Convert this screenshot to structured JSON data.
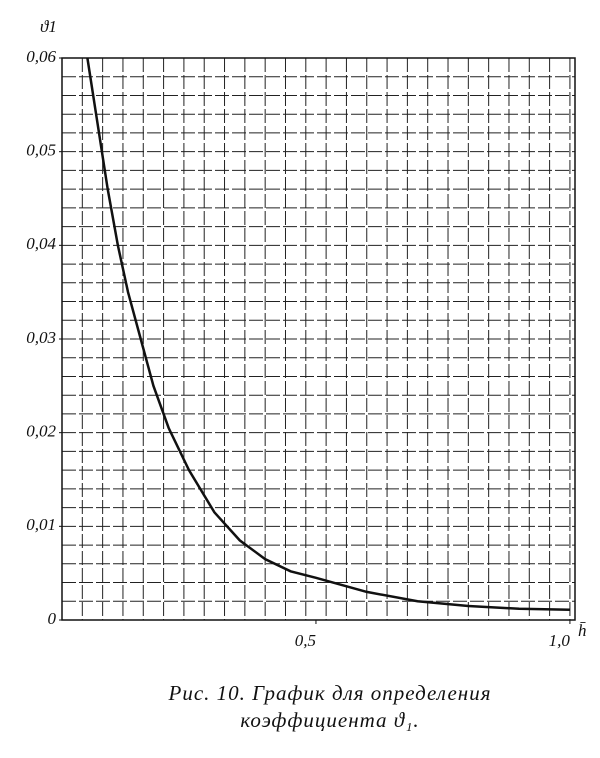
{
  "chart_data": {
    "type": "line",
    "y_label": "ϑ1",
    "x_label": "h̄",
    "caption": [
      "Рис. 10. График для определения",
      "коэффициента ϑ₁."
    ],
    "x": [
      0.05,
      0.07,
      0.09,
      0.11,
      0.13,
      0.15,
      0.18,
      0.21,
      0.25,
      0.3,
      0.35,
      0.4,
      0.45,
      0.5,
      0.6,
      0.7,
      0.8,
      0.9,
      1.0
    ],
    "values": [
      0.06,
      0.053,
      0.046,
      0.04,
      0.035,
      0.031,
      0.025,
      0.0205,
      0.016,
      0.0115,
      0.0085,
      0.0065,
      0.0052,
      0.0045,
      0.003,
      0.002,
      0.0015,
      0.0012,
      0.0011
    ],
    "color": "#111111",
    "xlim": [
      0,
      1.01
    ],
    "ylim": [
      0,
      0.06
    ],
    "xticks": [
      {
        "value": 0.5,
        "label": "0,5"
      },
      {
        "value": 1.0,
        "label": "1,0"
      }
    ],
    "yticks": [
      0,
      {
        "value": 0.01,
        "label": "0,01"
      },
      {
        "value": 0.02,
        "label": "0,02"
      },
      {
        "value": 0.03,
        "label": "0,03"
      },
      {
        "value": 0.04,
        "label": "0,04"
      },
      {
        "value": 0.05,
        "label": "0,05"
      },
      {
        "value": 0.06,
        "label": "0,06"
      }
    ],
    "grid": true,
    "minor_grid": {
      "x_step": 0.04,
      "y_step": 0.002
    }
  }
}
